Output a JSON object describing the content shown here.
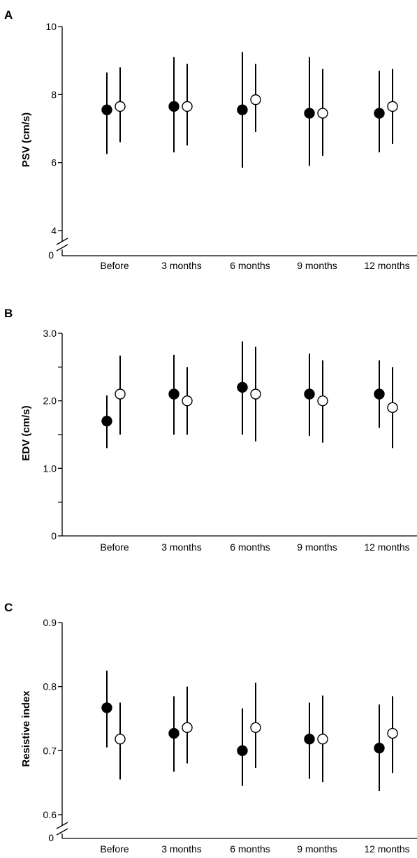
{
  "chart_data": [
    {
      "panel": "A",
      "type": "scatter",
      "ylabel": "PSV (cm/s)",
      "ylim": [
        4,
        10
      ],
      "yticks": [
        4,
        6,
        8,
        10
      ],
      "ytick_labels": [
        "4",
        "6",
        "8",
        "10"
      ],
      "ytick_minor": [],
      "zero_label": "0",
      "axis_break": true,
      "categories": [
        "Before",
        "3 months",
        "6 months",
        "9 months",
        "12 months"
      ],
      "series": [
        {
          "marker": "filled-circle",
          "values": [
            7.55,
            7.65,
            7.55,
            7.45,
            7.45
          ],
          "low": [
            6.25,
            6.3,
            5.85,
            5.9,
            6.3
          ],
          "high": [
            8.65,
            9.1,
            9.25,
            9.1,
            8.7
          ]
        },
        {
          "marker": "open-circle",
          "values": [
            7.65,
            7.65,
            7.85,
            7.45,
            7.65
          ],
          "low": [
            6.6,
            6.5,
            6.9,
            6.2,
            6.55
          ],
          "high": [
            8.8,
            8.9,
            8.9,
            8.75,
            8.75
          ]
        }
      ]
    },
    {
      "panel": "B",
      "type": "scatter",
      "ylabel": "EDV (cm/s)",
      "ylim": [
        0,
        3.0
      ],
      "yticks": [
        0,
        1.0,
        2.0,
        3.0
      ],
      "ytick_labels": [
        "0",
        "1.0",
        "2.0",
        "3.0"
      ],
      "ytick_minor": [
        0.5,
        1.5,
        2.5
      ],
      "zero_label": "",
      "axis_break": false,
      "categories": [
        "Before",
        "3 months",
        "6 months",
        "9 months",
        "12 months"
      ],
      "series": [
        {
          "marker": "filled-circle",
          "values": [
            1.7,
            2.1,
            2.2,
            2.1,
            2.1
          ],
          "low": [
            1.3,
            1.5,
            1.5,
            1.48,
            1.6
          ],
          "high": [
            2.08,
            2.68,
            2.88,
            2.7,
            2.6
          ]
        },
        {
          "marker": "open-circle",
          "values": [
            2.1,
            2.0,
            2.1,
            2.0,
            1.9
          ],
          "low": [
            1.5,
            1.5,
            1.4,
            1.38,
            1.3
          ],
          "high": [
            2.67,
            2.5,
            2.8,
            2.6,
            2.5
          ]
        }
      ]
    },
    {
      "panel": "C",
      "type": "scatter",
      "ylabel": "Resistive index",
      "ylim": [
        0.6,
        0.9
      ],
      "yticks": [
        0.6,
        0.7,
        0.8,
        0.9
      ],
      "ytick_labels": [
        "0.6",
        "0.7",
        "0.8",
        "0.9"
      ],
      "ytick_minor": [],
      "zero_label": "0",
      "axis_break": true,
      "categories": [
        "Before",
        "3 months",
        "6 months",
        "9 months",
        "12 months"
      ],
      "series": [
        {
          "marker": "filled-circle",
          "values": [
            0.767,
            0.727,
            0.7,
            0.718,
            0.704
          ],
          "low": [
            0.705,
            0.667,
            0.645,
            0.656,
            0.637
          ],
          "high": [
            0.825,
            0.785,
            0.766,
            0.775,
            0.772
          ]
        },
        {
          "marker": "open-circle",
          "values": [
            0.718,
            0.736,
            0.736,
            0.718,
            0.727
          ],
          "low": [
            0.655,
            0.68,
            0.673,
            0.651,
            0.665
          ],
          "high": [
            0.775,
            0.8,
            0.806,
            0.786,
            0.785
          ]
        }
      ]
    }
  ]
}
